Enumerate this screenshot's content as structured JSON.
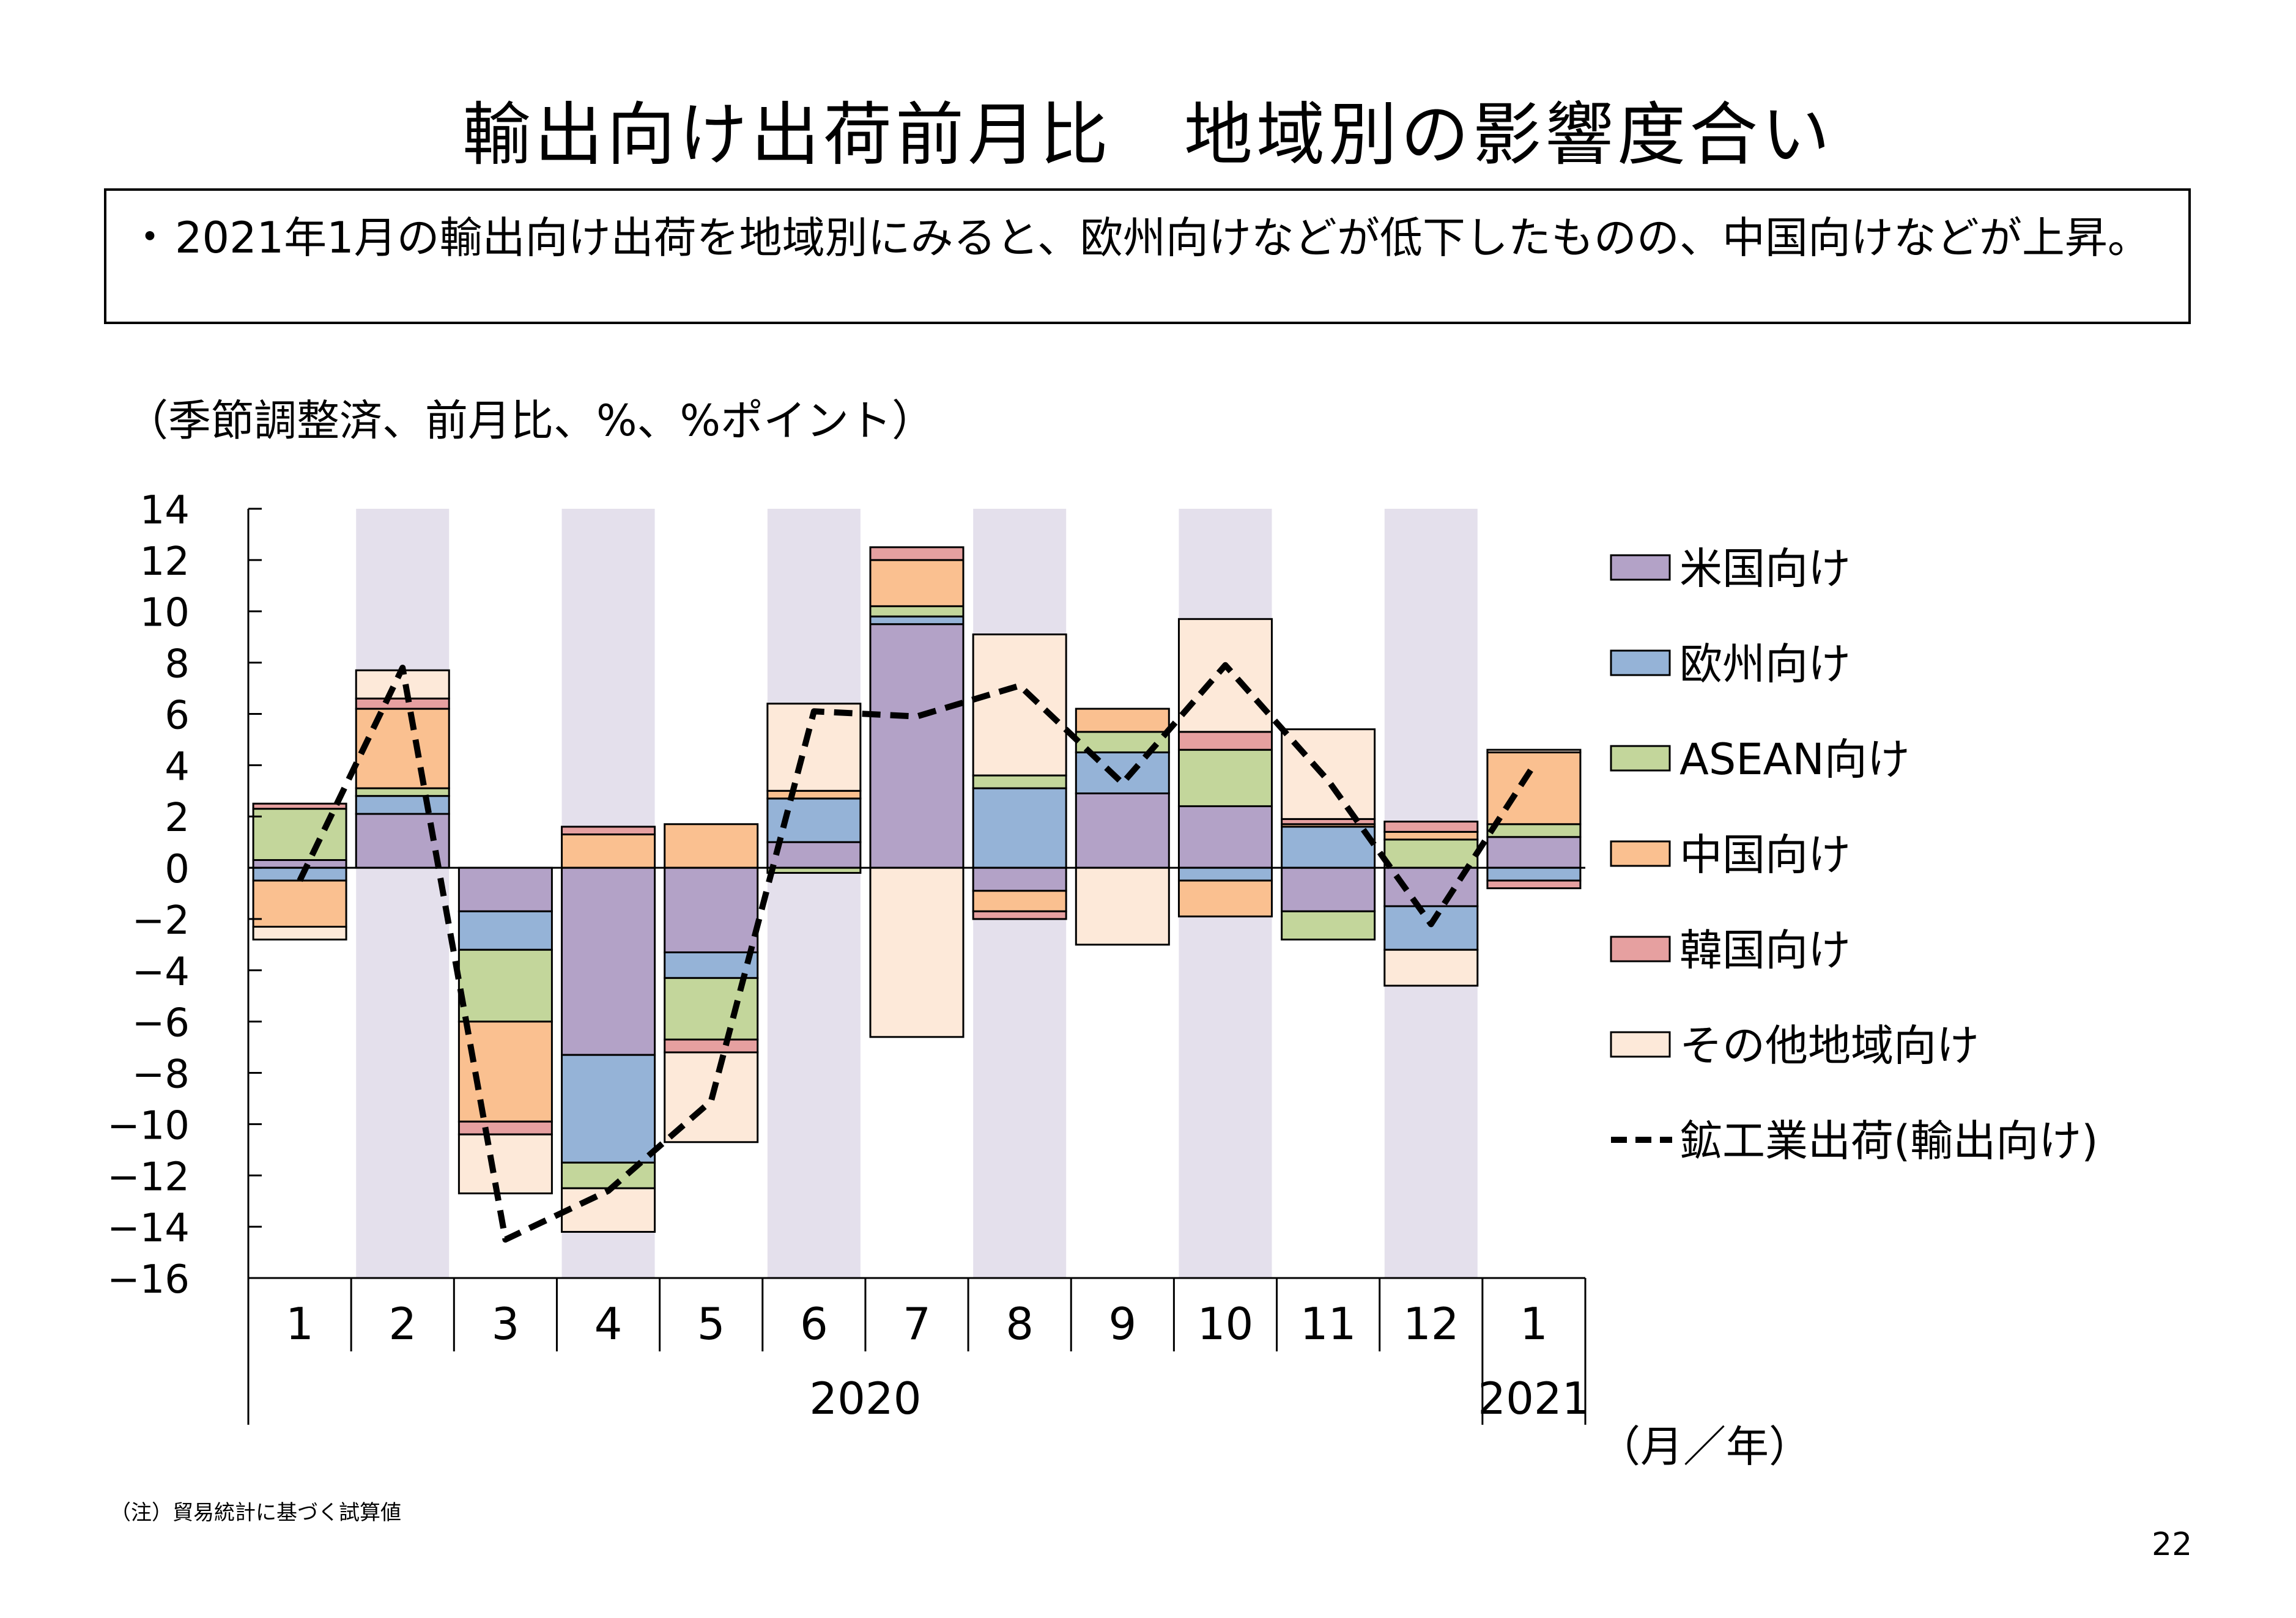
{
  "title": "輸出向け出荷前月比　地域別の影響度合い",
  "summary": {
    "bullet": "・",
    "text": "2021年1月の輸出向け出荷を地域別にみると、欧州向けなどが低下したものの、中国向けなどが上昇。"
  },
  "unit_note": "（季節調整済、前月比、%、%ポイント）",
  "axis_unit": "（月／年）",
  "footnote": "（注）貿易統計に基づく試算値",
  "page_number": "22",
  "colors": {
    "shade": "#e4e0ec",
    "us": "#b3a2c7",
    "eu": "#95b3d7",
    "asean": "#c3d69b",
    "china": "#fac090",
    "korea": "#e6a0a0",
    "other": "#fde9d9"
  },
  "chart_data": {
    "type": "bar",
    "stacked": true,
    "categories": [
      "1",
      "2",
      "3",
      "4",
      "5",
      "6",
      "7",
      "8",
      "9",
      "10",
      "11",
      "12",
      "1"
    ],
    "year_labels": [
      {
        "label": "2020",
        "from": 0,
        "to": 11
      },
      {
        "label": "2021",
        "from": 12,
        "to": 12
      }
    ],
    "shaded_categories": [
      1,
      3,
      5,
      7,
      9,
      11
    ],
    "ylim": [
      -16,
      14
    ],
    "yticks": [
      14,
      12,
      10,
      8,
      6,
      4,
      2,
      0,
      -2,
      -4,
      -6,
      -8,
      -10,
      -12,
      -14,
      -16
    ],
    "legend_position": "right",
    "series": [
      {
        "name": "米国向け",
        "color_key": "us",
        "values": [
          0.3,
          2.1,
          -1.7,
          -7.3,
          -3.3,
          1.0,
          9.5,
          -0.9,
          2.9,
          2.4,
          -1.7,
          -1.5,
          1.2
        ]
      },
      {
        "name": "欧州向け",
        "color_key": "eu",
        "values": [
          -0.5,
          0.7,
          -1.5,
          -4.2,
          -1.0,
          1.7,
          0.3,
          3.1,
          1.6,
          -0.5,
          1.6,
          -1.7,
          -0.5
        ]
      },
      {
        "name": "ASEAN向け",
        "color_key": "asean",
        "values": [
          2.0,
          0.3,
          -2.8,
          -1.0,
          -2.4,
          -0.2,
          0.4,
          0.5,
          0.8,
          2.2,
          -1.1,
          1.1,
          0.5
        ]
      },
      {
        "name": "中国向け",
        "color_key": "china",
        "values": [
          -1.8,
          3.1,
          -3.9,
          1.3,
          1.7,
          0.3,
          1.8,
          -0.8,
          0.9,
          -1.4,
          0.1,
          0.3,
          2.8
        ]
      },
      {
        "name": "韓国向け",
        "color_key": "korea",
        "values": [
          0.2,
          0.4,
          -0.5,
          0.3,
          -0.5,
          0.0,
          0.5,
          -0.3,
          0.0,
          0.7,
          0.2,
          0.4,
          -0.3
        ]
      },
      {
        "name": "その他地域向け",
        "color_key": "other",
        "values": [
          -0.5,
          1.1,
          -2.3,
          -1.7,
          -3.5,
          3.4,
          -6.6,
          5.5,
          -3.0,
          4.4,
          3.5,
          -1.4,
          0.1
        ]
      }
    ],
    "line": {
      "name": "鉱工業出荷(輸出向け)",
      "style": "dashed",
      "values": [
        -0.5,
        7.8,
        -14.5,
        -12.6,
        -9.1,
        6.1,
        5.9,
        7.1,
        3.3,
        7.9,
        3.4,
        -2.2,
        4.0
      ]
    }
  }
}
